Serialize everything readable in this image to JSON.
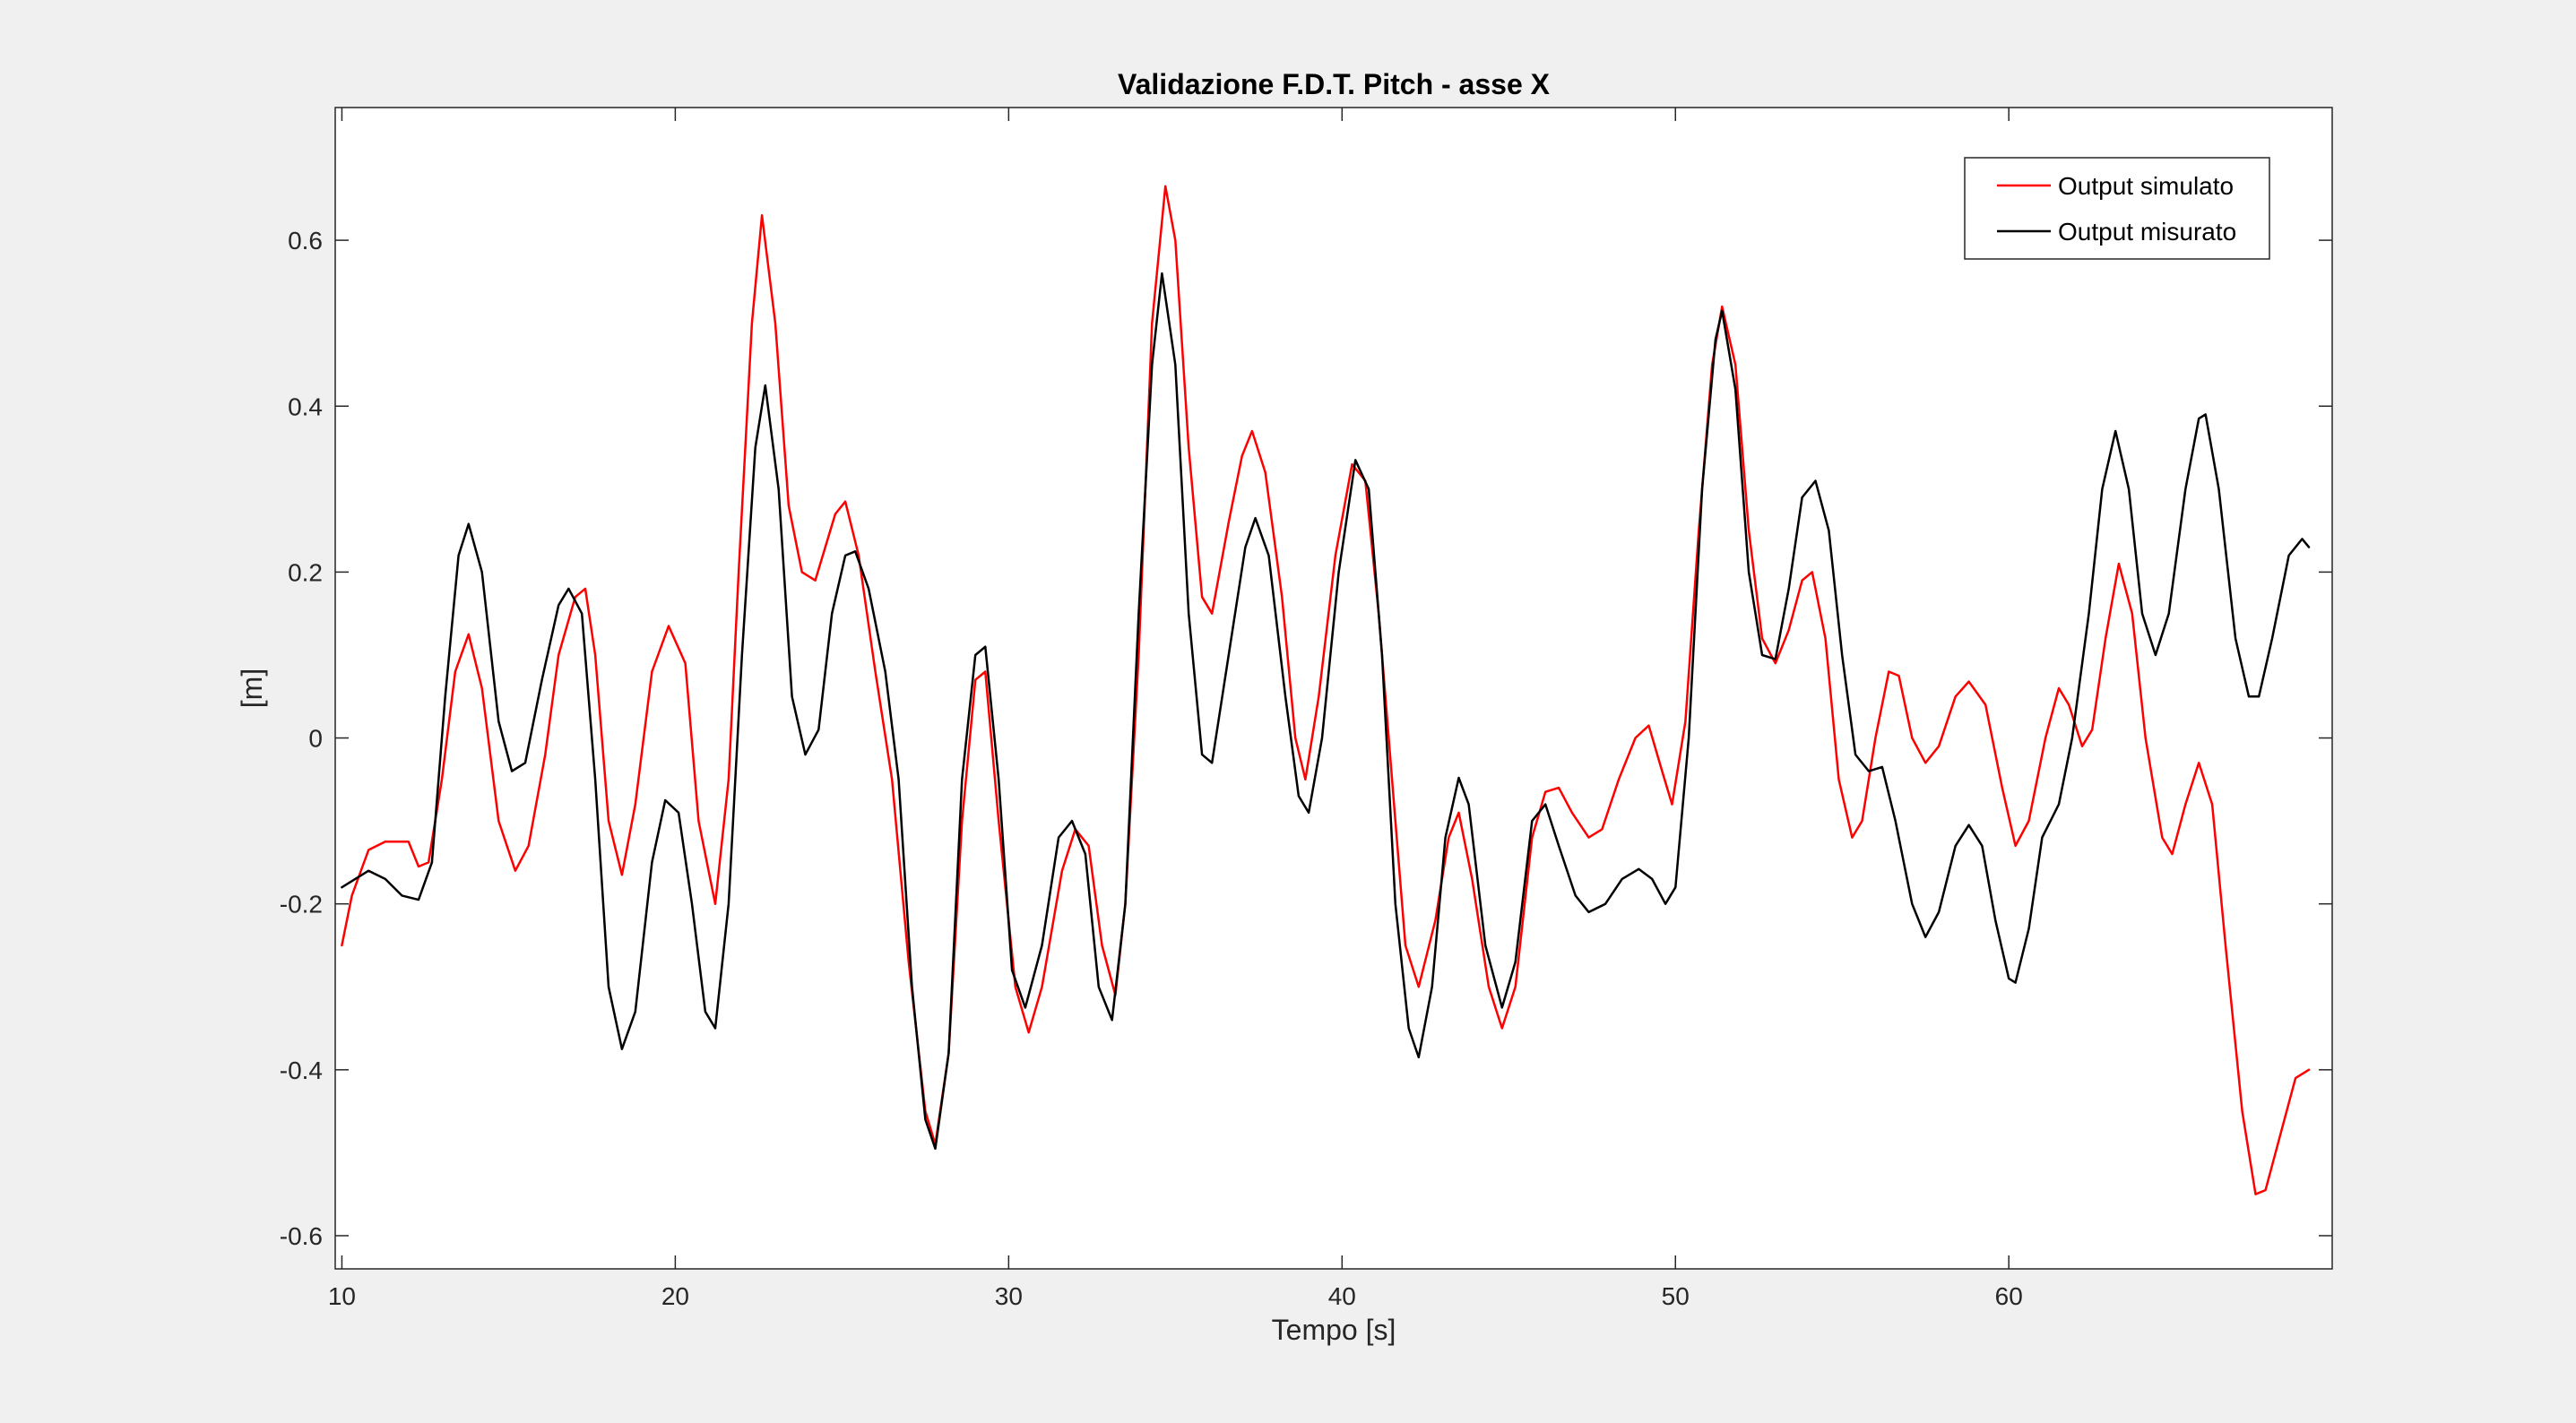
{
  "chart_data": {
    "type": "line",
    "title": "Validazione F.D.T. Pitch - asse X",
    "xlabel": "Tempo [s]",
    "ylabel": "[m]",
    "xlim": [
      9.8,
      69.7
    ],
    "ylim": [
      -0.64,
      0.76
    ],
    "xticks": [
      10,
      20,
      30,
      40,
      50,
      60
    ],
    "xtick_labels": [
      "10",
      "20",
      "30",
      "40",
      "50",
      "60"
    ],
    "yticks": [
      -0.6,
      -0.4,
      -0.2,
      0,
      0.2,
      0.4,
      0.6
    ],
    "ytick_labels": [
      "-0.6",
      "-0.4",
      "-0.2",
      "0",
      "0.2",
      "0.4",
      "0.6"
    ],
    "grid": false,
    "legend_position": "top-right",
    "series": [
      {
        "name": "Output simulato",
        "color": "#ff0000",
        "points": [
          [
            10,
            -0.25
          ],
          [
            10.3,
            -0.19
          ],
          [
            10.8,
            -0.135
          ],
          [
            11.3,
            -0.125
          ],
          [
            12.0,
            -0.125
          ],
          [
            12.3,
            -0.155
          ],
          [
            12.6,
            -0.15
          ],
          [
            13.0,
            -0.05
          ],
          [
            13.4,
            0.08
          ],
          [
            13.8,
            0.125
          ],
          [
            14.2,
            0.06
          ],
          [
            14.7,
            -0.1
          ],
          [
            15.2,
            -0.16
          ],
          [
            15.6,
            -0.13
          ],
          [
            16.1,
            -0.02
          ],
          [
            16.5,
            0.1
          ],
          [
            17.0,
            0.17
          ],
          [
            17.3,
            0.18
          ],
          [
            17.6,
            0.1
          ],
          [
            18.0,
            -0.1
          ],
          [
            18.4,
            -0.165
          ],
          [
            18.8,
            -0.08
          ],
          [
            19.3,
            0.08
          ],
          [
            19.8,
            0.135
          ],
          [
            20.3,
            0.09
          ],
          [
            20.7,
            -0.1
          ],
          [
            21.2,
            -0.2
          ],
          [
            21.6,
            -0.05
          ],
          [
            21.9,
            0.2
          ],
          [
            22.3,
            0.5
          ],
          [
            22.6,
            0.63
          ],
          [
            23.0,
            0.5
          ],
          [
            23.4,
            0.28
          ],
          [
            23.8,
            0.2
          ],
          [
            24.2,
            0.19
          ],
          [
            24.8,
            0.27
          ],
          [
            25.1,
            0.285
          ],
          [
            25.5,
            0.22
          ],
          [
            26.0,
            0.08
          ],
          [
            26.5,
            -0.05
          ],
          [
            27.0,
            -0.27
          ],
          [
            27.5,
            -0.45
          ],
          [
            27.8,
            -0.49
          ],
          [
            28.2,
            -0.38
          ],
          [
            28.6,
            -0.1
          ],
          [
            29.0,
            0.07
          ],
          [
            29.3,
            0.08
          ],
          [
            29.7,
            -0.1
          ],
          [
            30.2,
            -0.3
          ],
          [
            30.6,
            -0.355
          ],
          [
            31.0,
            -0.3
          ],
          [
            31.6,
            -0.16
          ],
          [
            32.0,
            -0.11
          ],
          [
            32.4,
            -0.13
          ],
          [
            32.8,
            -0.25
          ],
          [
            33.2,
            -0.31
          ],
          [
            33.5,
            -0.2
          ],
          [
            33.9,
            0.1
          ],
          [
            34.3,
            0.5
          ],
          [
            34.7,
            0.665
          ],
          [
            35.0,
            0.6
          ],
          [
            35.4,
            0.35
          ],
          [
            35.8,
            0.17
          ],
          [
            36.1,
            0.15
          ],
          [
            36.6,
            0.26
          ],
          [
            37.0,
            0.34
          ],
          [
            37.3,
            0.37
          ],
          [
            37.7,
            0.32
          ],
          [
            38.2,
            0.17
          ],
          [
            38.6,
            0.0
          ],
          [
            38.9,
            -0.05
          ],
          [
            39.3,
            0.05
          ],
          [
            39.8,
            0.22
          ],
          [
            40.3,
            0.33
          ],
          [
            40.7,
            0.31
          ],
          [
            41.1,
            0.15
          ],
          [
            41.6,
            -0.1
          ],
          [
            41.9,
            -0.25
          ],
          [
            42.3,
            -0.3
          ],
          [
            42.8,
            -0.22
          ],
          [
            43.2,
            -0.12
          ],
          [
            43.5,
            -0.09
          ],
          [
            43.9,
            -0.17
          ],
          [
            44.4,
            -0.3
          ],
          [
            44.8,
            -0.35
          ],
          [
            45.2,
            -0.3
          ],
          [
            45.7,
            -0.12
          ],
          [
            46.1,
            -0.065
          ],
          [
            46.5,
            -0.06
          ],
          [
            46.9,
            -0.09
          ],
          [
            47.4,
            -0.12
          ],
          [
            47.8,
            -0.11
          ],
          [
            48.3,
            -0.05
          ],
          [
            48.8,
            0.0
          ],
          [
            49.2,
            0.015
          ],
          [
            49.6,
            -0.04
          ],
          [
            49.9,
            -0.08
          ],
          [
            50.3,
            0.02
          ],
          [
            50.7,
            0.25
          ],
          [
            51.1,
            0.45
          ],
          [
            51.4,
            0.52
          ],
          [
            51.8,
            0.45
          ],
          [
            52.2,
            0.25
          ],
          [
            52.6,
            0.12
          ],
          [
            53.0,
            0.09
          ],
          [
            53.4,
            0.13
          ],
          [
            53.8,
            0.19
          ],
          [
            54.1,
            0.2
          ],
          [
            54.5,
            0.12
          ],
          [
            54.9,
            -0.05
          ],
          [
            55.3,
            -0.12
          ],
          [
            55.6,
            -0.1
          ],
          [
            56.0,
            0.0
          ],
          [
            56.4,
            0.08
          ],
          [
            56.7,
            0.075
          ],
          [
            57.1,
            0.0
          ],
          [
            57.5,
            -0.03
          ],
          [
            57.9,
            -0.01
          ],
          [
            58.4,
            0.05
          ],
          [
            58.8,
            0.068
          ],
          [
            59.3,
            0.04
          ],
          [
            59.8,
            -0.06
          ],
          [
            60.2,
            -0.13
          ],
          [
            60.6,
            -0.1
          ],
          [
            61.1,
            0.0
          ],
          [
            61.5,
            0.06
          ],
          [
            61.8,
            0.04
          ],
          [
            62.2,
            -0.01
          ],
          [
            62.5,
            0.01
          ],
          [
            62.9,
            0.12
          ],
          [
            63.3,
            0.21
          ],
          [
            63.7,
            0.15
          ],
          [
            64.1,
            0.0
          ],
          [
            64.6,
            -0.12
          ],
          [
            64.9,
            -0.14
          ],
          [
            65.3,
            -0.08
          ],
          [
            65.7,
            -0.03
          ],
          [
            66.1,
            -0.08
          ],
          [
            66.5,
            -0.25
          ],
          [
            67.0,
            -0.45
          ],
          [
            67.4,
            -0.55
          ],
          [
            67.7,
            -0.545
          ],
          [
            68.2,
            -0.47
          ],
          [
            68.6,
            -0.41
          ],
          [
            69.0,
            -0.4
          ]
        ]
      },
      {
        "name": "Output misurato",
        "color": "#000000",
        "points": [
          [
            10,
            -0.18
          ],
          [
            10.4,
            -0.17
          ],
          [
            10.8,
            -0.16
          ],
          [
            11.3,
            -0.17
          ],
          [
            11.8,
            -0.19
          ],
          [
            12.3,
            -0.195
          ],
          [
            12.7,
            -0.15
          ],
          [
            13.1,
            0.05
          ],
          [
            13.5,
            0.22
          ],
          [
            13.8,
            0.258
          ],
          [
            14.2,
            0.2
          ],
          [
            14.7,
            0.02
          ],
          [
            15.1,
            -0.04
          ],
          [
            15.5,
            -0.03
          ],
          [
            16.0,
            0.07
          ],
          [
            16.5,
            0.16
          ],
          [
            16.8,
            0.18
          ],
          [
            17.2,
            0.15
          ],
          [
            17.6,
            -0.05
          ],
          [
            18.0,
            -0.3
          ],
          [
            18.4,
            -0.375
          ],
          [
            18.8,
            -0.33
          ],
          [
            19.3,
            -0.15
          ],
          [
            19.7,
            -0.075
          ],
          [
            20.1,
            -0.09
          ],
          [
            20.5,
            -0.2
          ],
          [
            20.9,
            -0.33
          ],
          [
            21.2,
            -0.35
          ],
          [
            21.6,
            -0.2
          ],
          [
            22.0,
            0.1
          ],
          [
            22.4,
            0.35
          ],
          [
            22.7,
            0.425
          ],
          [
            23.1,
            0.3
          ],
          [
            23.5,
            0.05
          ],
          [
            23.9,
            -0.02
          ],
          [
            24.3,
            0.01
          ],
          [
            24.7,
            0.15
          ],
          [
            25.1,
            0.22
          ],
          [
            25.4,
            0.225
          ],
          [
            25.8,
            0.18
          ],
          [
            26.3,
            0.08
          ],
          [
            26.7,
            -0.05
          ],
          [
            27.1,
            -0.3
          ],
          [
            27.5,
            -0.46
          ],
          [
            27.8,
            -0.495
          ],
          [
            28.2,
            -0.38
          ],
          [
            28.6,
            -0.05
          ],
          [
            29.0,
            0.1
          ],
          [
            29.3,
            0.11
          ],
          [
            29.7,
            -0.05
          ],
          [
            30.1,
            -0.28
          ],
          [
            30.5,
            -0.325
          ],
          [
            31.0,
            -0.25
          ],
          [
            31.5,
            -0.12
          ],
          [
            31.9,
            -0.1
          ],
          [
            32.3,
            -0.14
          ],
          [
            32.7,
            -0.3
          ],
          [
            33.1,
            -0.34
          ],
          [
            33.5,
            -0.2
          ],
          [
            33.9,
            0.15
          ],
          [
            34.3,
            0.45
          ],
          [
            34.6,
            0.56
          ],
          [
            35.0,
            0.45
          ],
          [
            35.4,
            0.15
          ],
          [
            35.8,
            -0.02
          ],
          [
            36.1,
            -0.03
          ],
          [
            36.6,
            0.1
          ],
          [
            37.1,
            0.23
          ],
          [
            37.4,
            0.265
          ],
          [
            37.8,
            0.22
          ],
          [
            38.3,
            0.05
          ],
          [
            38.7,
            -0.07
          ],
          [
            39.0,
            -0.09
          ],
          [
            39.4,
            0.0
          ],
          [
            39.9,
            0.2
          ],
          [
            40.4,
            0.335
          ],
          [
            40.8,
            0.3
          ],
          [
            41.2,
            0.1
          ],
          [
            41.6,
            -0.2
          ],
          [
            42.0,
            -0.35
          ],
          [
            42.3,
            -0.385
          ],
          [
            42.7,
            -0.3
          ],
          [
            43.1,
            -0.12
          ],
          [
            43.5,
            -0.048
          ],
          [
            43.8,
            -0.08
          ],
          [
            44.3,
            -0.25
          ],
          [
            44.8,
            -0.325
          ],
          [
            45.2,
            -0.27
          ],
          [
            45.7,
            -0.1
          ],
          [
            46.1,
            -0.08
          ],
          [
            46.5,
            -0.13
          ],
          [
            47.0,
            -0.19
          ],
          [
            47.4,
            -0.21
          ],
          [
            47.9,
            -0.2
          ],
          [
            48.4,
            -0.17
          ],
          [
            48.9,
            -0.158
          ],
          [
            49.3,
            -0.17
          ],
          [
            49.7,
            -0.2
          ],
          [
            50.0,
            -0.18
          ],
          [
            50.4,
            0.0
          ],
          [
            50.8,
            0.3
          ],
          [
            51.2,
            0.48
          ],
          [
            51.4,
            0.515
          ],
          [
            51.8,
            0.42
          ],
          [
            52.2,
            0.2
          ],
          [
            52.6,
            0.1
          ],
          [
            53.0,
            0.095
          ],
          [
            53.4,
            0.18
          ],
          [
            53.8,
            0.29
          ],
          [
            54.2,
            0.31
          ],
          [
            54.6,
            0.25
          ],
          [
            55.0,
            0.1
          ],
          [
            55.4,
            -0.02
          ],
          [
            55.8,
            -0.04
          ],
          [
            56.2,
            -0.035
          ],
          [
            56.6,
            -0.1
          ],
          [
            57.1,
            -0.2
          ],
          [
            57.5,
            -0.24
          ],
          [
            57.9,
            -0.21
          ],
          [
            58.4,
            -0.13
          ],
          [
            58.8,
            -0.105
          ],
          [
            59.2,
            -0.13
          ],
          [
            59.6,
            -0.22
          ],
          [
            60.0,
            -0.29
          ],
          [
            60.2,
            -0.295
          ],
          [
            60.6,
            -0.23
          ],
          [
            61.0,
            -0.12
          ],
          [
            61.5,
            -0.08
          ],
          [
            61.9,
            0.0
          ],
          [
            62.4,
            0.15
          ],
          [
            62.8,
            0.3
          ],
          [
            63.2,
            0.37
          ],
          [
            63.6,
            0.3
          ],
          [
            64.0,
            0.15
          ],
          [
            64.4,
            0.1
          ],
          [
            64.8,
            0.15
          ],
          [
            65.3,
            0.3
          ],
          [
            65.7,
            0.385
          ],
          [
            65.9,
            0.39
          ],
          [
            66.3,
            0.3
          ],
          [
            66.8,
            0.12
          ],
          [
            67.2,
            0.05
          ],
          [
            67.5,
            0.05
          ],
          [
            67.9,
            0.12
          ],
          [
            68.4,
            0.22
          ],
          [
            68.8,
            0.24
          ],
          [
            69.0,
            0.23
          ]
        ]
      }
    ]
  }
}
